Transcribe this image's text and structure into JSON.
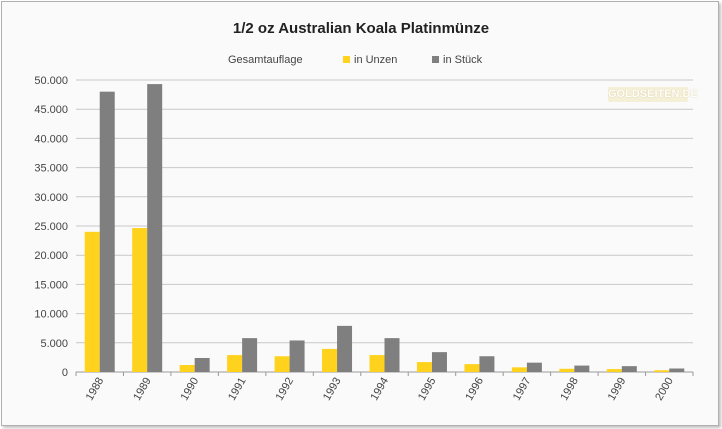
{
  "chart_data": {
    "type": "bar",
    "title": "1/2 oz Australian Koala Platinmünze",
    "legend_title": "Gesamtauflage",
    "legend_position": "top",
    "grid": true,
    "categories": [
      "1988",
      "1989",
      "1990",
      "1991",
      "1992",
      "1993",
      "1994",
      "1995",
      "1996",
      "1997",
      "1998",
      "1999",
      "2000"
    ],
    "series": [
      {
        "name": "in Unzen",
        "color": "#FFD21E",
        "values": [
          24000,
          24650,
          1200,
          2900,
          2700,
          3950,
          2900,
          1700,
          1350,
          800,
          550,
          500,
          300
        ]
      },
      {
        "name": "in Stück",
        "color": "#7F7F7F",
        "values": [
          48000,
          49300,
          2400,
          5800,
          5400,
          7900,
          5800,
          3400,
          2700,
          1600,
          1100,
          1000,
          600
        ]
      }
    ],
    "ylim": [
      0,
      50000
    ],
    "yticks": [
      0,
      5000,
      10000,
      15000,
      20000,
      25000,
      30000,
      35000,
      40000,
      45000,
      50000
    ],
    "ytick_labels": [
      "0",
      "5.000",
      "10.000",
      "15.000",
      "20.000",
      "25.000",
      "30.000",
      "35.000",
      "40.000",
      "45.000",
      "50.000"
    ]
  },
  "watermark": {
    "text": "GOLDSEITEN.DE"
  }
}
